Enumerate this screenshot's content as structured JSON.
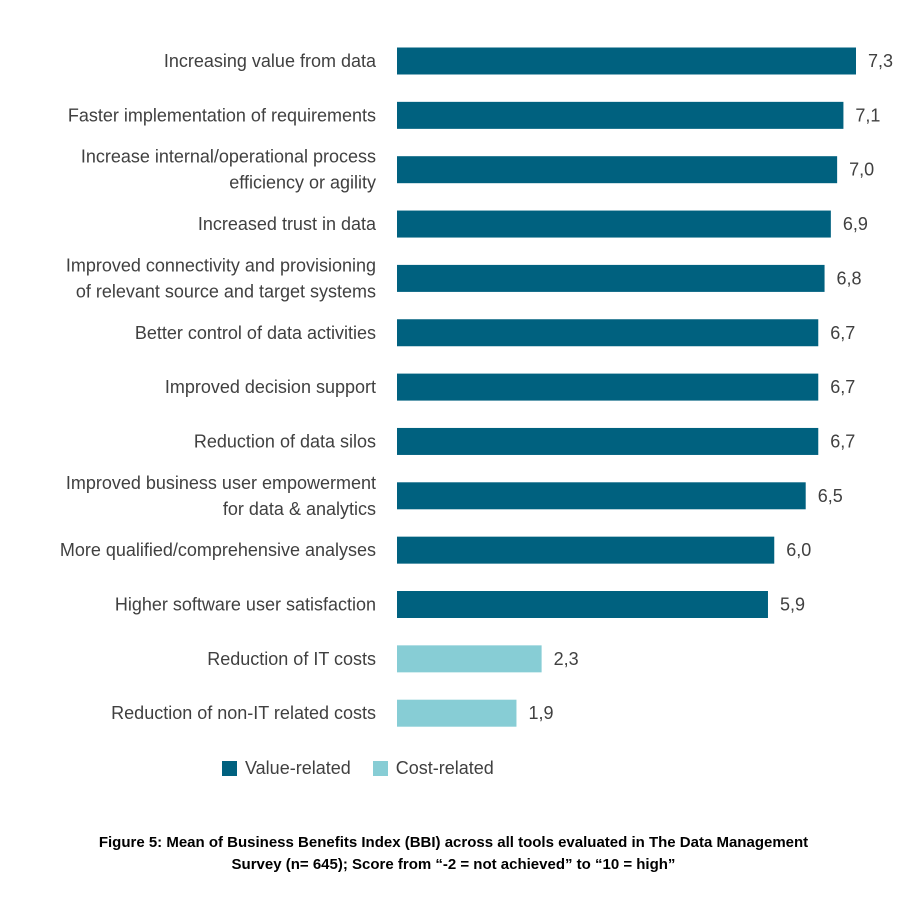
{
  "chart_data": {
    "type": "bar",
    "orientation": "horizontal",
    "xlim": [
      0,
      7.3
    ],
    "grid": false,
    "legend_position": "bottom",
    "bars": [
      {
        "label": [
          "Increasing value from data"
        ],
        "value": 7.3,
        "display": "7,3",
        "group": "value"
      },
      {
        "label": [
          "Faster implementation of requirements"
        ],
        "value": 7.1,
        "display": "7,1",
        "group": "value"
      },
      {
        "label": [
          "Increase internal/operational process",
          "efficiency or agility"
        ],
        "value": 7.0,
        "display": "7,0",
        "group": "value"
      },
      {
        "label": [
          "Increased trust in data"
        ],
        "value": 6.9,
        "display": "6,9",
        "group": "value"
      },
      {
        "label": [
          "Improved connectivity and provisioning",
          "of relevant source and target systems"
        ],
        "value": 6.8,
        "display": "6,8",
        "group": "value"
      },
      {
        "label": [
          "Better control of data activities"
        ],
        "value": 6.7,
        "display": "6,7",
        "group": "value"
      },
      {
        "label": [
          "Improved decision support"
        ],
        "value": 6.7,
        "display": "6,7",
        "group": "value"
      },
      {
        "label": [
          "Reduction of data silos"
        ],
        "value": 6.7,
        "display": "6,7",
        "group": "value"
      },
      {
        "label": [
          "Improved business user empowerment",
          "for data & analytics"
        ],
        "value": 6.5,
        "display": "6,5",
        "group": "value"
      },
      {
        "label": [
          "More qualified/comprehensive analyses"
        ],
        "value": 6.0,
        "display": "6,0",
        "group": "value"
      },
      {
        "label": [
          "Higher software user satisfaction"
        ],
        "value": 5.9,
        "display": "5,9",
        "group": "value"
      },
      {
        "label": [
          "Reduction of IT costs"
        ],
        "value": 2.3,
        "display": "2,3",
        "group": "cost"
      },
      {
        "label": [
          "Reduction of non-IT related costs"
        ],
        "value": 1.9,
        "display": "1,9",
        "group": "cost"
      }
    ],
    "legend": [
      {
        "name": "Value-related",
        "group": "value"
      },
      {
        "name": "Cost-related",
        "group": "cost"
      }
    ],
    "colors": {
      "value": "#00617f",
      "cost": "#87cdd5"
    }
  },
  "caption": {
    "line1": "Figure 5: Mean of Business Benefits Index (BBI) across all tools evaluated in The Data Management",
    "line2": "Survey (n= 645); Score from “-2 = not achieved” to “10 = high”"
  }
}
